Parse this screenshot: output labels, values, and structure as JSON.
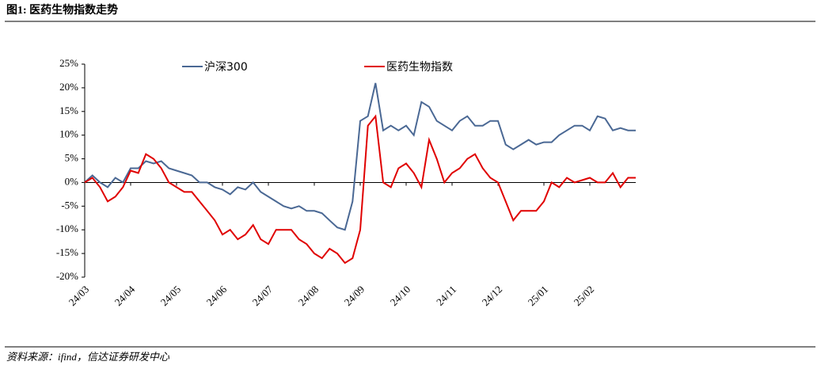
{
  "chart_data": {
    "type": "line",
    "title": "图1: 医药生物指数走势",
    "source": "资料来源：ifind，信达证券研发中心",
    "categories": [
      "24/03",
      null,
      null,
      null,
      null,
      null,
      "24/04",
      null,
      null,
      null,
      null,
      null,
      "24/05",
      null,
      null,
      null,
      null,
      null,
      "24/06",
      null,
      null,
      null,
      null,
      null,
      "24/07",
      null,
      null,
      null,
      null,
      null,
      "24/08",
      null,
      null,
      null,
      null,
      null,
      "24/09",
      null,
      null,
      null,
      null,
      null,
      "24/10",
      null,
      null,
      null,
      null,
      null,
      "24/11",
      null,
      null,
      null,
      null,
      null,
      "24/12",
      null,
      null,
      null,
      null,
      null,
      "25/01",
      null,
      null,
      null,
      null,
      null,
      "25/02",
      null,
      null,
      null,
      null,
      null,
      null
    ],
    "series": [
      {
        "name": "沪深300",
        "color": "#4a6894",
        "values": [
          0,
          1.5,
          0,
          -1,
          1,
          0,
          3,
          3,
          4.5,
          4,
          4.5,
          3,
          2.5,
          2,
          1.5,
          0,
          0,
          -1,
          -1.5,
          -2.5,
          -1,
          -1.5,
          0,
          -2,
          -3,
          -4,
          -5,
          -5.5,
          -5,
          -6,
          -6,
          -6.5,
          -8,
          -9.5,
          -10,
          -4,
          13,
          14,
          21,
          11,
          12,
          11,
          12,
          10,
          17,
          16,
          13,
          12,
          11,
          13,
          14,
          12,
          12,
          13,
          13,
          8,
          7,
          8,
          9,
          8,
          8.5,
          8.5,
          10,
          11,
          12,
          12,
          11,
          14,
          13.5,
          11,
          11.5,
          11,
          11
        ]
      },
      {
        "name": "医药生物指数",
        "color": "#e00000",
        "values": [
          0,
          1,
          -1,
          -4,
          -3,
          -1,
          2.5,
          2,
          6,
          5,
          3,
          0,
          -1,
          -2,
          -2,
          -4,
          -6,
          -8,
          -11,
          -10,
          -12,
          -11,
          -9,
          -12,
          -13,
          -10,
          -10,
          -10,
          -12,
          -13,
          -15,
          -16,
          -14,
          -15,
          -17,
          -16,
          -10,
          12,
          14,
          0,
          -1,
          3,
          4,
          2,
          -1,
          9,
          5,
          0,
          2,
          3,
          5,
          6,
          3,
          1,
          0,
          -4,
          -8,
          -6,
          -6,
          -6,
          -4,
          0,
          -1,
          1,
          0,
          0.5,
          1,
          0,
          0,
          2,
          -1,
          1,
          1
        ]
      }
    ],
    "ylim": [
      -20,
      25
    ],
    "yticks": [
      {
        "value": -20,
        "label": "-20%"
      },
      {
        "value": -15,
        "label": "-15%"
      },
      {
        "value": -10,
        "label": "-10%"
      },
      {
        "value": -5,
        "label": "-5%"
      },
      {
        "value": 0,
        "label": "0%"
      },
      {
        "value": 5,
        "label": "5%"
      },
      {
        "value": 10,
        "label": "10%"
      },
      {
        "value": 15,
        "label": "15%"
      },
      {
        "value": 20,
        "label": "20%"
      },
      {
        "value": 25,
        "label": "25%"
      }
    ],
    "grid": false
  }
}
